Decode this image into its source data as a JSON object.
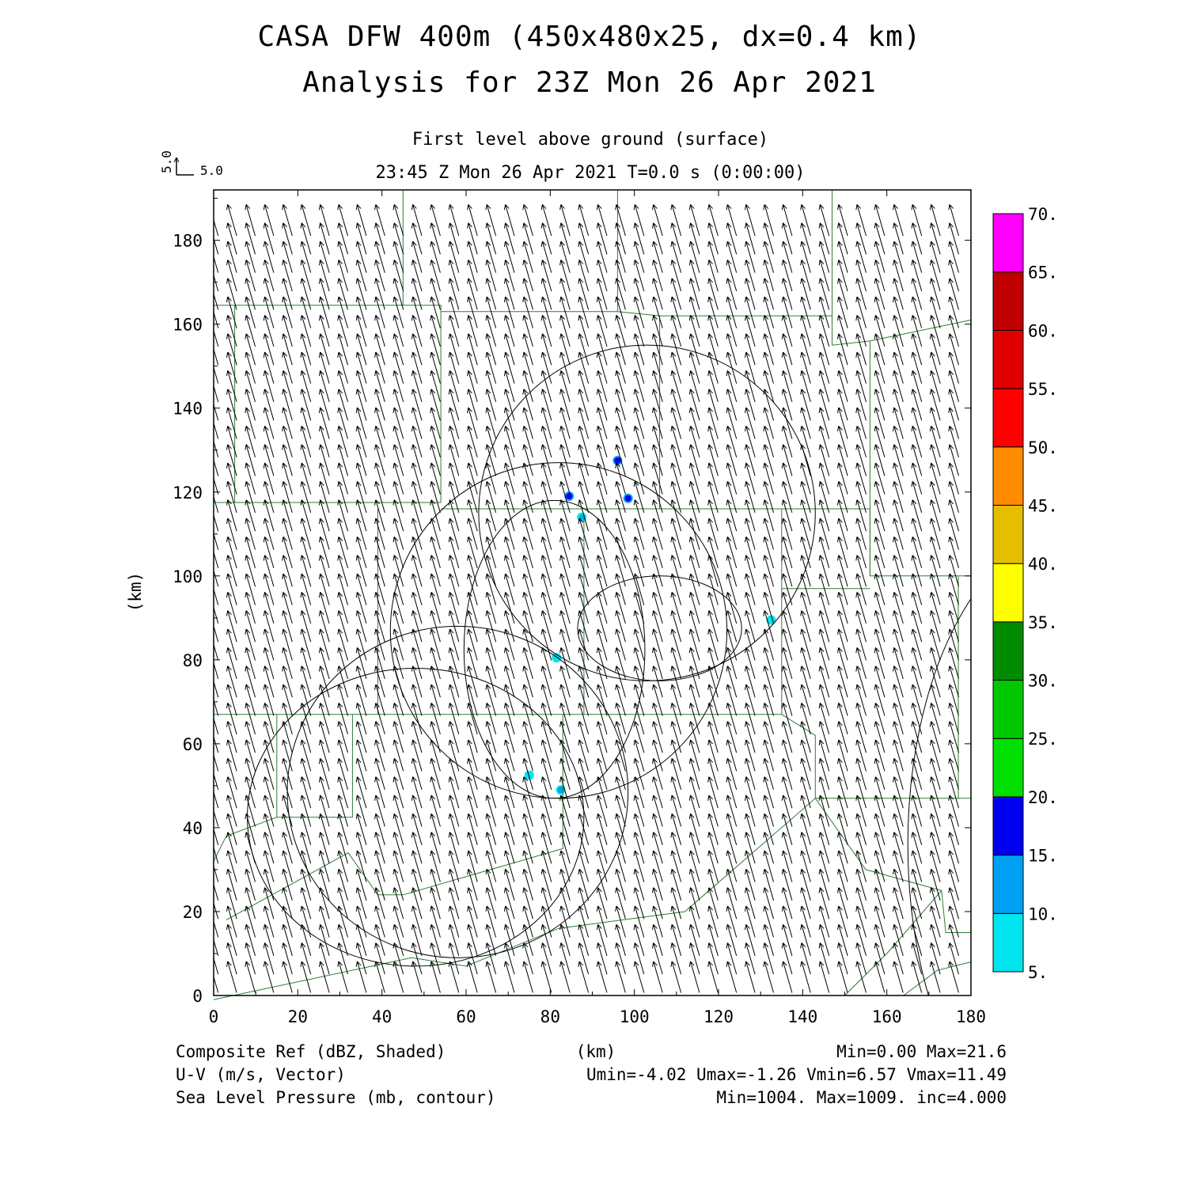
{
  "header": {
    "title_line1": "CASA DFW 400m (450x480x25, dx=0.4 km)",
    "title_line2": "Analysis for 23Z Mon 26 Apr 2021",
    "level": "First level above ground (surface)",
    "time": "23:45 Z Mon 26 Apr 2021    T=0.0 s (0:00:00)"
  },
  "vector_key": {
    "u_label": "5.0",
    "v_label": "5.0"
  },
  "footer": {
    "row1_left": "Composite Ref (dBZ, Shaded)",
    "row1_mid": "(km)",
    "row1_right": "Min=0.00 Max=21.6",
    "row2_left": "U-V (m/s, Vector)",
    "row2_right": "Umin=-4.02 Umax=-1.26 Vmin=6.57 Vmax=11.49",
    "row3_left": "Sea Level Pressure (mb, contour)",
    "row3_right": "Min=1004. Max=1009. inc=4.000"
  },
  "chart_data": {
    "type": "contour",
    "xlabel": "(km)",
    "ylabel": "(km)",
    "xlim": [
      0,
      180
    ],
    "ylim": [
      0,
      192
    ],
    "xticks": [
      0,
      20,
      40,
      60,
      80,
      100,
      120,
      140,
      160,
      180
    ],
    "yticks": [
      0,
      20,
      40,
      60,
      80,
      100,
      120,
      140,
      160,
      180
    ],
    "colorbar": {
      "levels": [
        "5.",
        "10.",
        "15.",
        "20.",
        "25.",
        "30.",
        "35.",
        "40.",
        "45.",
        "50.",
        "55.",
        "60.",
        "65.",
        "70."
      ],
      "colors": [
        "#00e5ee",
        "#00a0f5",
        "#0000f0",
        "#00e000",
        "#00c800",
        "#008c00",
        "#ffff00",
        "#e6be00",
        "#ff8c00",
        "#ff0000",
        "#e00000",
        "#c00000",
        "#ff00ff"
      ]
    },
    "wind": {
      "u": -2.6,
      "v": 9.0,
      "spacing_km": 4.4
    },
    "reflectivity_spots": [
      {
        "x": 96.0,
        "y": 127.5,
        "dbz": 16
      },
      {
        "x": 84.5,
        "y": 119.0,
        "dbz": 15
      },
      {
        "x": 98.5,
        "y": 118.5,
        "dbz": 15
      },
      {
        "x": 87.5,
        "y": 114.0,
        "dbz": 11
      },
      {
        "x": 81.5,
        "y": 80.5,
        "dbz": 8
      },
      {
        "x": 132.5,
        "y": 89.5,
        "dbz": 6
      },
      {
        "x": 75.0,
        "y": 52.5,
        "dbz": 8
      },
      {
        "x": 82.5,
        "y": 49.0,
        "dbz": 12
      }
    ],
    "pressure_contours": [
      {
        "cx": 103,
        "cy": 115,
        "rx": 40,
        "ry": 40
      },
      {
        "cx": 82,
        "cy": 87,
        "rx": 40,
        "ry": 40
      },
      {
        "cx": 106,
        "cy": 87.5,
        "rx": 19.5,
        "ry": 12.5
      },
      {
        "cx": 81,
        "cy": 82.5,
        "rx": 21.5,
        "ry": 35.5
      },
      {
        "cx": 48,
        "cy": 42.5,
        "rx": 40,
        "ry": 35.5
      },
      {
        "cx": 58,
        "cy": 48.5,
        "rx": 40.5,
        "ry": 39.5
      },
      {
        "cx": 205,
        "cy": 36,
        "rx": 40,
        "ry": 75
      }
    ],
    "county_boundaries": [
      [
        [
          0,
          164.5
        ],
        [
          45,
          164.5
        ],
        [
          45,
          192
        ]
      ],
      [
        [
          5,
          164.5
        ],
        [
          5,
          117.5
        ],
        [
          0,
          117.5
        ]
      ],
      [
        [
          45,
          164.5
        ],
        [
          54,
          164.5
        ],
        [
          54,
          117.5
        ],
        [
          5,
          117.5
        ]
      ],
      [
        [
          54,
          163
        ],
        [
          96,
          163
        ],
        [
          96,
          192
        ]
      ],
      [
        [
          96,
          163
        ],
        [
          106,
          162
        ],
        [
          106,
          116
        ]
      ],
      [
        [
          106,
          162
        ],
        [
          147,
          162
        ],
        [
          147,
          192
        ]
      ],
      [
        [
          147,
          162
        ],
        [
          147,
          155
        ],
        [
          156,
          156
        ],
        [
          180,
          161
        ]
      ],
      [
        [
          54,
          116
        ],
        [
          156,
          116
        ],
        [
          156,
          100
        ],
        [
          180,
          100
        ]
      ],
      [
        [
          135,
          116
        ],
        [
          135,
          97
        ],
        [
          156,
          97
        ]
      ],
      [
        [
          156,
          156
        ],
        [
          156,
          100
        ]
      ],
      [
        [
          39,
          116
        ],
        [
          39,
          67
        ]
      ],
      [
        [
          88,
          114
        ],
        [
          88,
          67
        ]
      ],
      [
        [
          0,
          67
        ],
        [
          135,
          67
        ],
        [
          135,
          97
        ]
      ],
      [
        [
          33,
          67
        ],
        [
          33,
          42.5
        ],
        [
          15,
          42.5
        ],
        [
          15,
          67
        ]
      ],
      [
        [
          135,
          67
        ],
        [
          143,
          62
        ],
        [
          143,
          47
        ]
      ],
      [
        [
          143,
          47
        ],
        [
          180,
          47
        ]
      ],
      [
        [
          177,
          100
        ],
        [
          177,
          47
        ]
      ],
      [
        [
          83,
          67
        ],
        [
          83,
          35
        ],
        [
          45,
          24
        ]
      ],
      [
        [
          45,
          24
        ],
        [
          39,
          24
        ],
        [
          32,
          34
        ],
        [
          3,
          18
        ]
      ],
      [
        [
          15,
          42.5
        ],
        [
          3,
          38
        ],
        [
          0,
          32
        ]
      ],
      [
        [
          143,
          47
        ],
        [
          112,
          20
        ],
        [
          82,
          16
        ],
        [
          60,
          7
        ],
        [
          47,
          9
        ],
        [
          0,
          -1
        ]
      ],
      [
        [
          143,
          47
        ],
        [
          155,
          30
        ],
        [
          173,
          25
        ],
        [
          174,
          15
        ],
        [
          180,
          15
        ]
      ],
      [
        [
          173,
          25
        ],
        [
          160,
          10
        ],
        [
          150,
          0
        ]
      ],
      [
        [
          180,
          8
        ],
        [
          172,
          6
        ],
        [
          164,
          0
        ]
      ]
    ]
  }
}
